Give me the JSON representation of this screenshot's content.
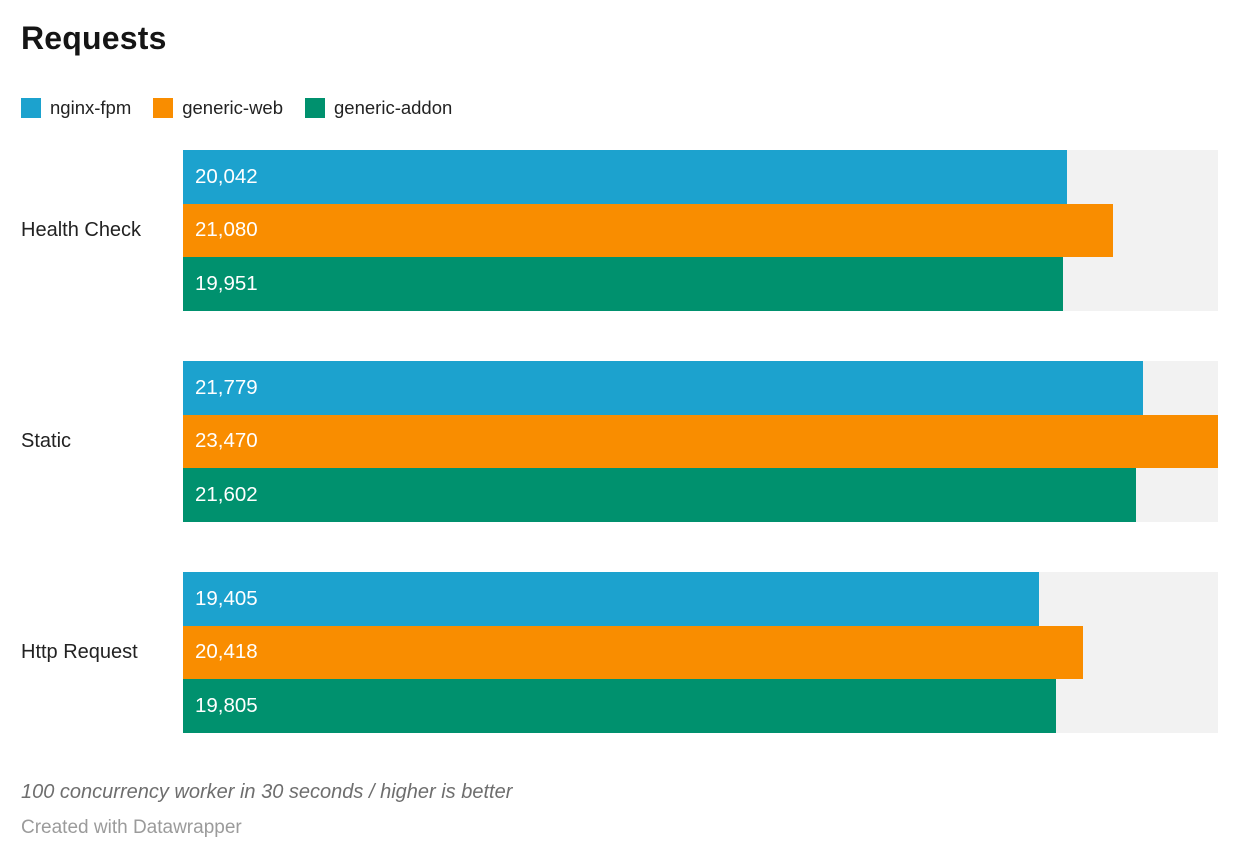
{
  "header": {
    "title": "Requests"
  },
  "chart_data": {
    "type": "bar",
    "orientation": "horizontal",
    "title": "Requests",
    "categories": [
      "Health Check",
      "Static",
      "Http Request"
    ],
    "series": [
      {
        "name": "nginx-fpm",
        "color": "#1CA2CE",
        "values": [
          20042,
          21779,
          19405
        ]
      },
      {
        "name": "generic-web",
        "color": "#F98D00",
        "values": [
          21080,
          23470,
          20418
        ]
      },
      {
        "name": "generic-addon",
        "color": "#00916E",
        "values": [
          19951,
          21602,
          19805
        ]
      }
    ],
    "value_labels": [
      [
        "20,042",
        "21,080",
        "19,951"
      ],
      [
        "21,779",
        "23,470",
        "21,602"
      ],
      [
        "19,405",
        "20,418",
        "19,805"
      ]
    ],
    "xlim": [
      0,
      23470
    ],
    "grid": false,
    "legend_position": "top",
    "track_color": "#f2f2f2",
    "label_position": "inside-left"
  },
  "footer": {
    "footnote": "100 concurrency worker in 30 seconds / higher is better",
    "byline": "Created with Datawrapper"
  }
}
